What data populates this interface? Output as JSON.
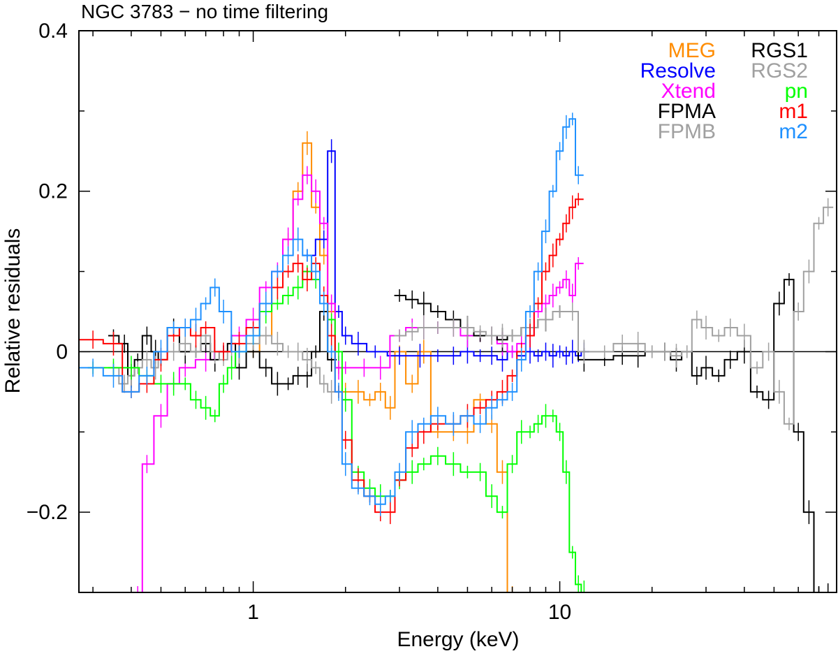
{
  "chart_data": {
    "type": "line",
    "title": "NGC 3783 − no time filtering",
    "xlabel": "Energy (keV)",
    "ylabel": "Relative residuals",
    "xscale": "log",
    "xlim": [
      0.27,
      80
    ],
    "ylim": [
      -0.3,
      0.4
    ],
    "x_tick_labels": [
      {
        "value": 1,
        "label": "1"
      },
      {
        "value": 10,
        "label": "10"
      }
    ],
    "y_tick_labels": [
      {
        "value": 0.4,
        "label": "0.4"
      },
      {
        "value": 0.2,
        "label": "0.2"
      },
      {
        "value": 0,
        "label": "0"
      },
      {
        "value": -0.2,
        "label": "−0.2"
      }
    ],
    "reference_line": 0,
    "legend_position": "top-right",
    "series": [
      {
        "name": "MEG",
        "color": "#ff8c00",
        "x": [
          1.0,
          1.1,
          1.2,
          1.3,
          1.4,
          1.5,
          1.6,
          1.7,
          1.8,
          1.9,
          2.0,
          2.2,
          2.4,
          2.6,
          2.8,
          3.0,
          3.3,
          3.6,
          4.0,
          4.5,
          5.0,
          5.5,
          6.0,
          6.5,
          7.0
        ],
        "y": [
          0.0,
          0.02,
          0.08,
          0.14,
          0.2,
          0.26,
          0.18,
          0.12,
          0.05,
          -0.02,
          -0.05,
          -0.05,
          -0.06,
          -0.05,
          -0.07,
          0.0,
          -0.04,
          0.0,
          -0.1,
          -0.1,
          -0.1,
          -0.06,
          -0.09,
          -0.15,
          -0.3
        ]
      },
      {
        "name": "Resolve",
        "color": "#0000ff",
        "x": [
          1.5,
          1.7,
          1.8,
          1.9,
          2.0,
          2.2,
          2.5,
          3.0,
          3.5,
          4.0,
          4.5,
          5.0,
          5.5,
          6.0,
          6.5,
          7.0,
          7.5,
          8.0,
          8.5,
          9.0,
          9.5,
          10.0,
          10.5,
          11.0,
          11.5,
          12.0
        ],
        "y": [
          0.12,
          0.14,
          0.25,
          0.05,
          0.02,
          0.01,
          0.0,
          -0.005,
          -0.005,
          -0.005,
          -0.005,
          0.0,
          -0.005,
          -0.005,
          -0.01,
          0.0,
          -0.005,
          0.0,
          -0.005,
          0.0,
          -0.005,
          0.0,
          -0.005,
          0.0,
          -0.005,
          0.0
        ]
      },
      {
        "name": "Xtend",
        "color": "#ff00ff",
        "x": [
          0.42,
          0.45,
          0.5,
          0.55,
          0.6,
          0.7,
          0.8,
          0.9,
          1.0,
          1.1,
          1.2,
          1.3,
          1.4,
          1.5,
          1.6,
          1.7,
          1.8,
          1.9,
          2.0,
          2.3,
          2.6,
          3.0,
          3.3,
          3.6,
          4.0,
          4.5,
          5.0,
          5.5,
          6.0,
          6.5,
          7.0,
          7.5,
          8.0,
          8.5,
          9.0,
          9.5,
          10.0,
          10.5,
          11.0,
          11.5
        ],
        "y": [
          -0.3,
          -0.14,
          -0.08,
          -0.04,
          -0.02,
          -0.01,
          0.0,
          0.02,
          0.04,
          0.08,
          0.1,
          0.14,
          0.19,
          0.22,
          0.2,
          0.16,
          0.06,
          -0.02,
          -0.02,
          -0.02,
          -0.02,
          0.02,
          0.03,
          0.03,
          0.03,
          0.03,
          0.02,
          0.02,
          0.02,
          0.01,
          0.0,
          0.01,
          0.02,
          0.05,
          0.06,
          0.07,
          0.08,
          0.09,
          0.07,
          0.11
        ]
      },
      {
        "name": "FPMA",
        "color": "#000000",
        "x": [
          3.0,
          3.3,
          3.6,
          4.0,
          4.5,
          5.0,
          5.5,
          6.0,
          6.5,
          7.0,
          8.0,
          9.0,
          10.0,
          11.0,
          12.0,
          14.0,
          16.0,
          18.0,
          20.0,
          22.0,
          24.0,
          26.0,
          28.0,
          30.0,
          33.0,
          36.0,
          40.0,
          44.0,
          48.0,
          52.0,
          56.0,
          60.0,
          65.0,
          70.0,
          75.0
        ],
        "y": [
          0.07,
          0.065,
          0.06,
          0.05,
          0.04,
          0.03,
          0.02,
          0.02,
          0.015,
          0.02,
          0.03,
          0.04,
          0.05,
          0.05,
          -0.01,
          -0.01,
          -0.005,
          -0.005,
          0.0,
          0.0,
          -0.01,
          0.0,
          -0.03,
          -0.02,
          -0.03,
          -0.01,
          0.0,
          -0.05,
          -0.06,
          0.06,
          0.09,
          -0.1,
          -0.2,
          -0.3,
          -0.3
        ]
      },
      {
        "name": "FPMB",
        "color": "#a0a0a0",
        "x": [
          3.0,
          3.3,
          3.6,
          4.0,
          4.5,
          5.0,
          5.5,
          6.0,
          6.5,
          7.0,
          8.0,
          9.0,
          10.0,
          11.0,
          12.0,
          14.0,
          16.0,
          18.0,
          20.0,
          22.0,
          24.0,
          26.0,
          28.0,
          30.0,
          33.0,
          36.0,
          40.0,
          44.0,
          48.0,
          52.0,
          56.0,
          60.0,
          65.0,
          70.0,
          75.0
        ],
        "y": [
          0.02,
          0.025,
          0.03,
          0.03,
          0.03,
          0.03,
          0.025,
          0.02,
          0.02,
          0.02,
          0.03,
          0.04,
          0.05,
          0.05,
          0.0,
          0.0,
          0.01,
          0.01,
          0.0,
          0.0,
          -0.005,
          0.0,
          0.04,
          0.03,
          0.02,
          0.03,
          0.02,
          -0.02,
          0.0,
          -0.05,
          -0.09,
          0.05,
          0.1,
          0.16,
          0.18
        ]
      },
      {
        "name": "RGS1",
        "color": "#000000",
        "x": [
          0.35,
          0.38,
          0.4,
          0.42,
          0.45,
          0.48,
          0.5,
          0.55,
          0.6,
          0.65,
          0.7,
          0.75,
          0.8,
          0.85,
          0.9,
          1.0,
          1.1,
          1.2,
          1.3,
          1.4,
          1.5,
          1.6,
          1.7,
          1.8
        ],
        "y": [
          0.02,
          0.01,
          -0.03,
          -0.01,
          0.02,
          0.0,
          -0.01,
          0.03,
          0.0,
          0.0,
          0.01,
          -0.01,
          0.0,
          0.01,
          -0.02,
          0.0,
          -0.02,
          -0.04,
          -0.04,
          -0.03,
          -0.03,
          0.0,
          0.05,
          -0.01
        ]
      },
      {
        "name": "RGS2",
        "color": "#a0a0a0",
        "x": [
          0.35,
          0.38,
          0.4,
          0.42,
          0.45,
          0.48,
          0.5,
          0.55,
          0.6,
          0.65,
          0.7,
          0.75,
          0.8,
          0.85,
          0.9,
          1.0,
          1.1,
          1.2,
          1.3,
          1.4,
          1.5,
          1.6,
          1.7,
          1.8,
          1.9,
          2.0
        ],
        "y": [
          -0.02,
          -0.04,
          -0.03,
          -0.02,
          -0.01,
          -0.02,
          -0.01,
          0.0,
          0.01,
          0.0,
          0.02,
          0.0,
          -0.01,
          0.0,
          0.0,
          0.01,
          0.02,
          0.01,
          0.0,
          0.0,
          -0.01,
          -0.02,
          -0.04,
          -0.05,
          -0.05,
          -0.06
        ]
      },
      {
        "name": "pn",
        "color": "#00ff00",
        "x": [
          0.3,
          0.35,
          0.4,
          0.45,
          0.5,
          0.55,
          0.6,
          0.65,
          0.7,
          0.75,
          0.8,
          0.85,
          0.9,
          1.0,
          1.1,
          1.2,
          1.3,
          1.4,
          1.5,
          1.6,
          1.7,
          1.8,
          1.9,
          2.0,
          2.2,
          2.4,
          2.6,
          2.8,
          3.0,
          3.3,
          3.6,
          4.0,
          4.5,
          5.0,
          5.5,
          6.0,
          6.5,
          7.0,
          7.5,
          8.0,
          8.5,
          9.0,
          9.5,
          10.0,
          10.5,
          11.0,
          11.5,
          12.0
        ],
        "y": [
          -0.02,
          -0.02,
          -0.02,
          -0.03,
          -0.04,
          -0.04,
          -0.04,
          -0.06,
          -0.07,
          -0.08,
          -0.04,
          -0.02,
          0.0,
          0.02,
          0.05,
          0.06,
          0.07,
          0.08,
          0.1,
          0.09,
          0.06,
          0.04,
          0.0,
          -0.06,
          -0.15,
          -0.17,
          -0.18,
          -0.18,
          -0.16,
          -0.15,
          -0.14,
          -0.13,
          -0.14,
          -0.15,
          -0.15,
          -0.18,
          -0.2,
          -0.14,
          -0.1,
          -0.1,
          -0.09,
          -0.08,
          -0.08,
          -0.1,
          -0.15,
          -0.25,
          -0.29,
          -0.3
        ]
      },
      {
        "name": "m1",
        "color": "#ff0000",
        "x": [
          0.27,
          0.3,
          0.35,
          0.4,
          0.45,
          0.5,
          0.55,
          0.6,
          0.65,
          0.7,
          0.8,
          0.9,
          1.0,
          1.1,
          1.2,
          1.3,
          1.4,
          1.5,
          1.6,
          1.7,
          1.8,
          1.9,
          2.0,
          2.2,
          2.4,
          2.6,
          2.8,
          3.0,
          3.3,
          3.6,
          4.0,
          4.5,
          5.0,
          5.5,
          6.0,
          6.5,
          7.0,
          7.5,
          8.0,
          8.5,
          9.0,
          9.5,
          10.0,
          10.5,
          11.0,
          11.5
        ],
        "y": [
          0.015,
          0.015,
          0.01,
          -0.05,
          -0.04,
          -0.01,
          0.02,
          0.03,
          0.02,
          0.03,
          0.0,
          0.01,
          0.03,
          0.06,
          0.08,
          0.1,
          0.11,
          0.09,
          0.11,
          0.07,
          0.02,
          -0.05,
          -0.11,
          -0.16,
          -0.18,
          -0.2,
          -0.2,
          -0.16,
          -0.12,
          -0.1,
          -0.09,
          -0.09,
          -0.08,
          -0.07,
          -0.06,
          -0.05,
          -0.03,
          0.0,
          0.02,
          0.06,
          0.1,
          0.12,
          0.14,
          0.16,
          0.18,
          0.19
        ]
      },
      {
        "name": "m2",
        "color": "#1e90ff",
        "x": [
          0.27,
          0.3,
          0.35,
          0.4,
          0.45,
          0.5,
          0.55,
          0.6,
          0.65,
          0.7,
          0.75,
          0.8,
          0.9,
          1.0,
          1.1,
          1.2,
          1.3,
          1.4,
          1.5,
          1.6,
          1.7,
          1.8,
          1.9,
          2.0,
          2.2,
          2.4,
          2.6,
          2.8,
          3.0,
          3.3,
          3.6,
          4.0,
          4.5,
          5.0,
          5.5,
          6.0,
          6.5,
          7.0,
          7.5,
          8.0,
          8.5,
          9.0,
          9.5,
          10.0,
          10.5,
          11.0,
          11.5
        ],
        "y": [
          -0.02,
          -0.02,
          -0.03,
          -0.05,
          -0.03,
          0.0,
          0.03,
          0.03,
          0.04,
          0.06,
          0.08,
          0.05,
          0.0,
          0.02,
          0.06,
          0.1,
          0.12,
          0.14,
          0.12,
          0.1,
          0.06,
          0.0,
          -0.05,
          -0.14,
          -0.17,
          -0.18,
          -0.19,
          -0.18,
          -0.15,
          -0.1,
          -0.09,
          -0.08,
          -0.09,
          -0.08,
          -0.09,
          -0.07,
          -0.06,
          -0.05,
          -0.01,
          0.05,
          0.1,
          0.15,
          0.2,
          0.25,
          0.28,
          0.29,
          0.22
        ]
      }
    ]
  }
}
